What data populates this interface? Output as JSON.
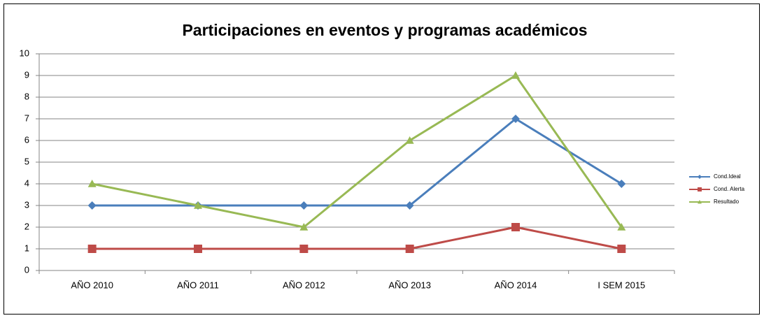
{
  "chart_data": {
    "type": "line",
    "title": "Participaciones en eventos y programas académicos",
    "categories": [
      "AÑO 2010",
      "AÑO 2011",
      "AÑO 2012",
      "AÑO 2013",
      "AÑO 2014",
      "I SEM 2015"
    ],
    "series": [
      {
        "name": "Cond.Ideal",
        "color": "#4a7ebb",
        "marker": "diamond",
        "values": [
          3,
          3,
          3,
          3,
          7,
          4
        ]
      },
      {
        "name": "Cond. Alerta",
        "color": "#be4b48",
        "marker": "square",
        "values": [
          1,
          1,
          1,
          1,
          2,
          1
        ]
      },
      {
        "name": "Resultado",
        "color": "#98b954",
        "marker": "triangle",
        "values": [
          4,
          3,
          2,
          6,
          9,
          2
        ]
      }
    ],
    "ylim": [
      0,
      10
    ],
    "yticks": [
      0,
      1,
      2,
      3,
      4,
      5,
      6,
      7,
      8,
      9,
      10
    ],
    "grid": true,
    "legend": "right"
  }
}
